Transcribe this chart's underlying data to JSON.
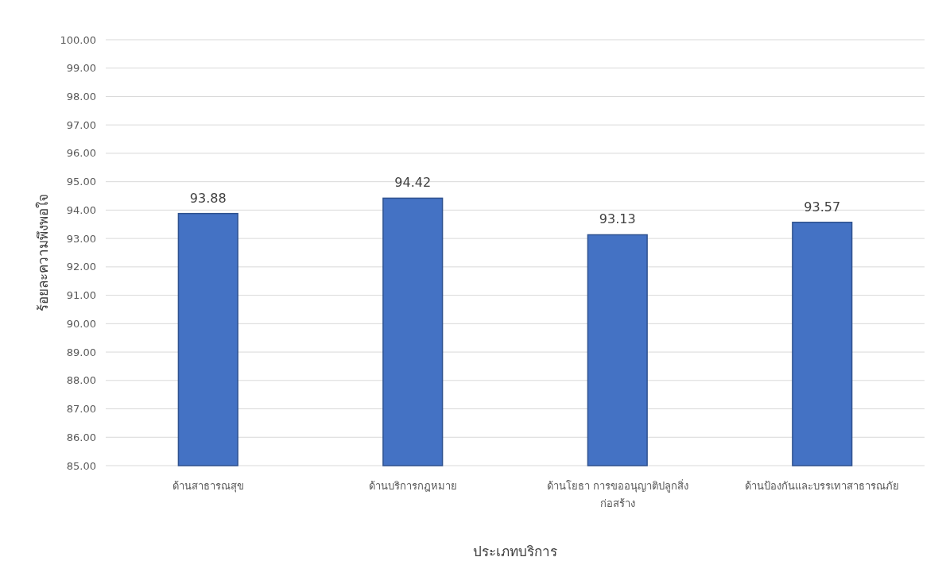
{
  "chart_data": {
    "type": "bar",
    "xlabel": "ประเภทบริการ",
    "ylabel": "ร้อยละความพึงพอใจ",
    "categories": [
      "ด้านสาธารณสุข",
      "ด้านบริการกฎหมาย",
      "ด้านโยธา การขออนุญาติปลูกสิ่งก่อสร้าง",
      "ด้านป้องกันและบรรเทาสาธารณภัย"
    ],
    "values": [
      93.88,
      94.42,
      93.13,
      93.57
    ],
    "color": "#4472c4",
    "data_labels": true,
    "grid": "y",
    "legend": false,
    "ylim": [
      85,
      100
    ],
    "yticks": [
      {
        "value": 85,
        "label": "85.00"
      },
      {
        "value": 86,
        "label": "86.00"
      },
      {
        "value": 87,
        "label": "87.00"
      },
      {
        "value": 88,
        "label": "88.00"
      },
      {
        "value": 89,
        "label": "89.00"
      },
      {
        "value": 90,
        "label": "90.00"
      },
      {
        "value": 91,
        "label": "91.00"
      },
      {
        "value": 92,
        "label": "92.00"
      },
      {
        "value": 93,
        "label": "93.00"
      },
      {
        "value": 94,
        "label": "94.00"
      },
      {
        "value": 95,
        "label": "95.00"
      },
      {
        "value": 96,
        "label": "96.00"
      },
      {
        "value": 97,
        "label": "97.00"
      },
      {
        "value": 98,
        "label": "98.00"
      },
      {
        "value": 99,
        "label": "99.00"
      },
      {
        "value": 100,
        "label": "100.00"
      }
    ]
  }
}
